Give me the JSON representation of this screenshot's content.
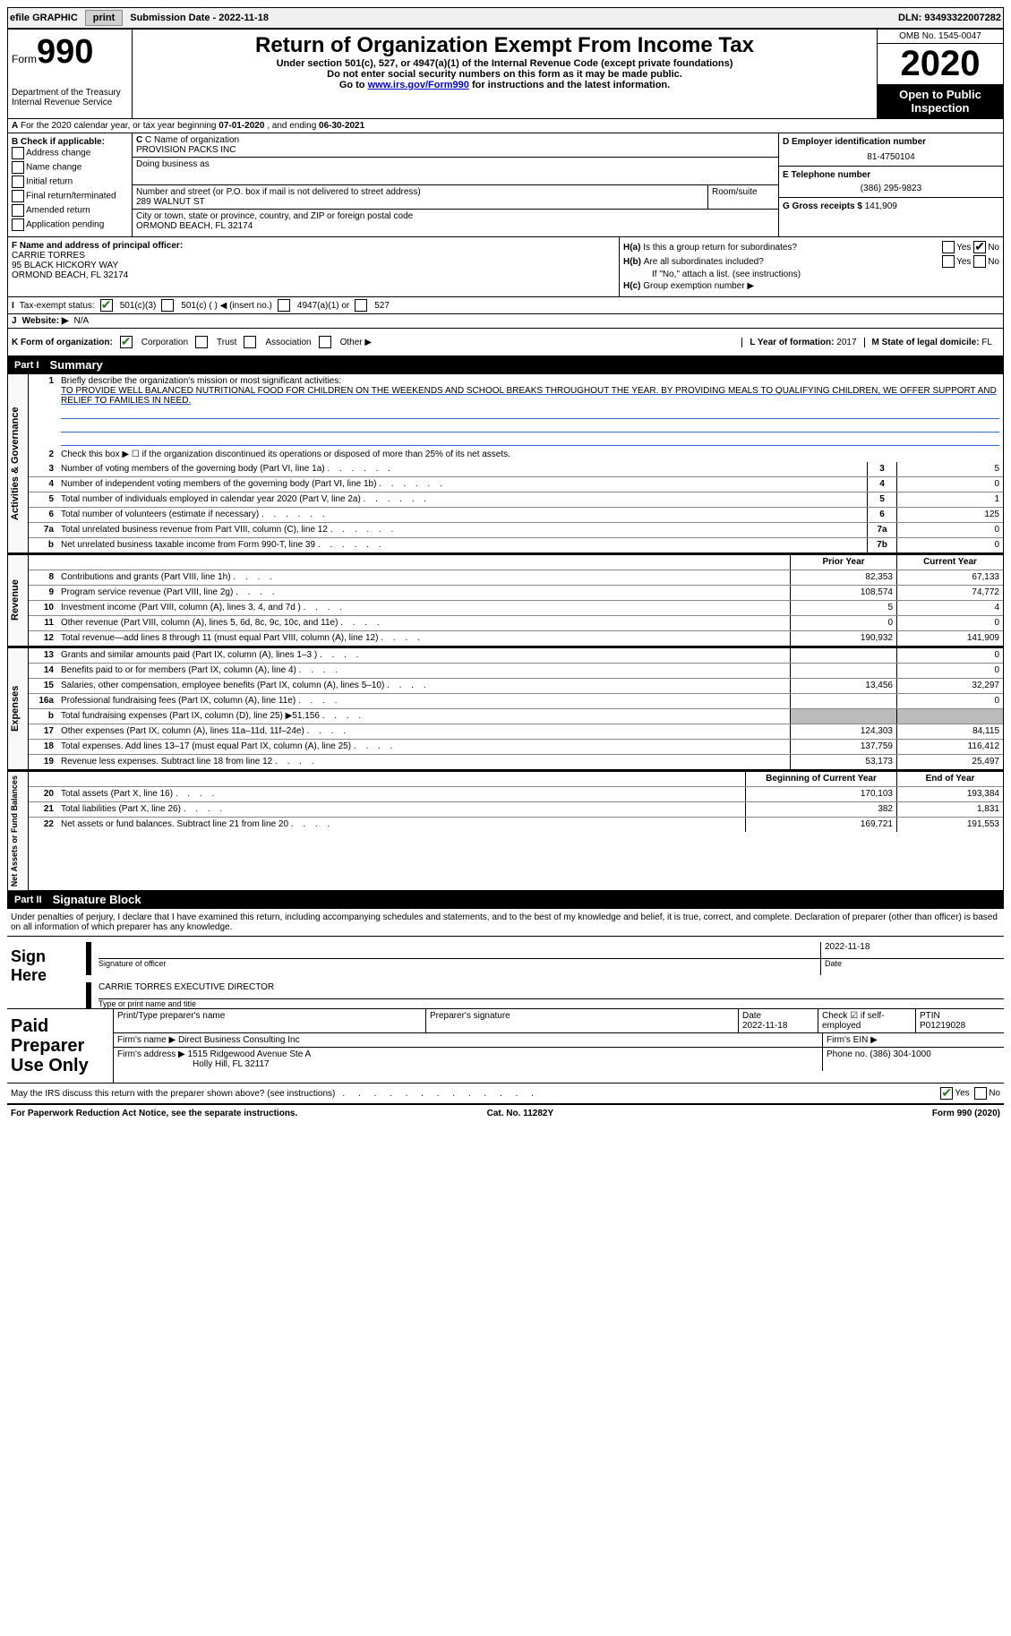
{
  "topbar": {
    "efile_label": "efile GRAPHIC",
    "print_btn": "print",
    "submission_label": "Submission Date - ",
    "submission_date": "2022-11-18",
    "dln_label": "DLN: ",
    "dln": "93493322007282"
  },
  "header": {
    "form_label": "Form",
    "form_num": "990",
    "dept": "Department of the Treasury",
    "irs": "Internal Revenue Service",
    "title": "Return of Organization Exempt From Income Tax",
    "sub1": "Under section 501(c), 527, or 4947(a)(1) of the Internal Revenue Code (except private foundations)",
    "sub2": "Do not enter social security numbers on this form as it may be made public.",
    "sub3_pre": "Go to ",
    "sub3_link": "www.irs.gov/Form990",
    "sub3_post": " for instructions and the latest information.",
    "omb": "OMB No. 1545-0047",
    "year": "2020",
    "open": "Open to Public Inspection"
  },
  "line_a": {
    "text": "For the 2020 calendar year, or tax year beginning ",
    "begin": "07-01-2020",
    "mid": " , and ending ",
    "end": "06-30-2021"
  },
  "col_b": {
    "title": "B Check if applicable:",
    "opts": [
      "Address change",
      "Name change",
      "Initial return",
      "Final return/terminated",
      "Amended return",
      "Application pending"
    ]
  },
  "col_c": {
    "name_label": "C Name of organization",
    "name": "PROVISION PACKS INC",
    "dba_label": "Doing business as",
    "dba": "",
    "street_label": "Number and street (or P.O. box if mail is not delivered to street address)",
    "room_label": "Room/suite",
    "street": "289 Walnut St",
    "city_label": "City or town, state or province, country, and ZIP or foreign postal code",
    "city": "ORMOND BEACH, FL  32174"
  },
  "col_d": {
    "ein_label": "D Employer identification number",
    "ein": "81-4750104",
    "phone_label": "E Telephone number",
    "phone": "(386) 295-9823",
    "gross_label": "G Gross receipts $ ",
    "gross": "141,909"
  },
  "col_f": {
    "label": "F  Name and address of principal officer:",
    "name": "CARRIE TORRES",
    "addr1": "95 BLACK HICKORY WAY",
    "addr2": "ORMOND BEACH, FL  32174"
  },
  "col_h": {
    "ha": "Is this a group return for subordinates?",
    "hb": "Are all subordinates included?",
    "hb_note": "If \"No,\" attach a list. (see instructions)",
    "hc": "Group exemption number ▶",
    "yes": "Yes",
    "no": "No"
  },
  "line_i": {
    "label": "Tax-exempt status:",
    "o1": "501(c)(3)",
    "o2": "501(c) (    ) ◀ (insert no.)",
    "o3": "4947(a)(1) or",
    "o4": "527"
  },
  "line_j": {
    "label": "Website: ▶",
    "val": "N/A"
  },
  "line_k": {
    "label": "K Form of organization:",
    "o1": "Corporation",
    "o2": "Trust",
    "o3": "Association",
    "o4": "Other ▶",
    "l_label": "L Year of formation: ",
    "l_val": "2017",
    "m_label": "M State of legal domicile: ",
    "m_val": "FL"
  },
  "parts": {
    "p1_num": "Part I",
    "p1_title": "Summary",
    "p2_num": "Part II",
    "p2_title": "Signature Block"
  },
  "vtabs": {
    "ag": "Activities & Governance",
    "rev": "Revenue",
    "exp": "Expenses",
    "na": "Net Assets or Fund Balances"
  },
  "summary": {
    "l1_label": "Briefly describe the organization's mission or most significant activities:",
    "l1_text": "TO PROVIDE WELL BALANCED NUTRITIONAL FOOD FOR CHILDREN ON THE WEEKENDS AND SCHOOL BREAKS THROUGHOUT THE YEAR. BY PROVIDING MEALS TO QUALIFYING CHILDREN, WE OFFER SUPPORT AND RELIEF TO FAMILIES IN NEED.",
    "l2": "Check this box ▶ ☐  if the organization discontinued its operations or disposed of more than 25% of its net assets.",
    "rows_ag": [
      {
        "n": "3",
        "d": "Number of voting members of the governing body (Part VI, line 1a)",
        "c": "3",
        "v": "5"
      },
      {
        "n": "4",
        "d": "Number of independent voting members of the governing body (Part VI, line 1b)",
        "c": "4",
        "v": "0"
      },
      {
        "n": "5",
        "d": "Total number of individuals employed in calendar year 2020 (Part V, line 2a)",
        "c": "5",
        "v": "1"
      },
      {
        "n": "6",
        "d": "Total number of volunteers (estimate if necessary)",
        "c": "6",
        "v": "125"
      },
      {
        "n": "7a",
        "d": "Total unrelated business revenue from Part VIII, column (C), line 12",
        "c": "7a",
        "v": "0"
      },
      {
        "n": "b",
        "d": "Net unrelated business taxable income from Form 990-T, line 39",
        "c": "7b",
        "v": "0"
      }
    ],
    "header_py": "Prior Year",
    "header_cy": "Current Year",
    "rows_rev": [
      {
        "n": "8",
        "d": "Contributions and grants (Part VIII, line 1h)",
        "py": "82,353",
        "cy": "67,133"
      },
      {
        "n": "9",
        "d": "Program service revenue (Part VIII, line 2g)",
        "py": "108,574",
        "cy": "74,772"
      },
      {
        "n": "10",
        "d": "Investment income (Part VIII, column (A), lines 3, 4, and 7d )",
        "py": "5",
        "cy": "4"
      },
      {
        "n": "11",
        "d": "Other revenue (Part VIII, column (A), lines 5, 6d, 8c, 9c, 10c, and 11e)",
        "py": "0",
        "cy": "0"
      },
      {
        "n": "12",
        "d": "Total revenue—add lines 8 through 11 (must equal Part VIII, column (A), line 12)",
        "py": "190,932",
        "cy": "141,909"
      }
    ],
    "rows_exp": [
      {
        "n": "13",
        "d": "Grants and similar amounts paid (Part IX, column (A), lines 1–3 )",
        "py": "",
        "cy": "0"
      },
      {
        "n": "14",
        "d": "Benefits paid to or for members (Part IX, column (A), line 4)",
        "py": "",
        "cy": "0"
      },
      {
        "n": "15",
        "d": "Salaries, other compensation, employee benefits (Part IX, column (A), lines 5–10)",
        "py": "13,456",
        "cy": "32,297"
      },
      {
        "n": "16a",
        "d": "Professional fundraising fees (Part IX, column (A), line 11e)",
        "py": "",
        "cy": "0"
      },
      {
        "n": "b",
        "d": "Total fundraising expenses (Part IX, column (D), line 25) ▶51,156",
        "py": "SHADE",
        "cy": "SHADE"
      },
      {
        "n": "17",
        "d": "Other expenses (Part IX, column (A), lines 11a–11d, 11f–24e)",
        "py": "124,303",
        "cy": "84,115"
      },
      {
        "n": "18",
        "d": "Total expenses. Add lines 13–17 (must equal Part IX, column (A), line 25)",
        "py": "137,759",
        "cy": "116,412"
      },
      {
        "n": "19",
        "d": "Revenue less expenses. Subtract line 18 from line 12",
        "py": "53,173",
        "cy": "25,497"
      }
    ],
    "header_bcy": "Beginning of Current Year",
    "header_eoy": "End of Year",
    "rows_na": [
      {
        "n": "20",
        "d": "Total assets (Part X, line 16)",
        "py": "170,103",
        "cy": "193,384"
      },
      {
        "n": "21",
        "d": "Total liabilities (Part X, line 26)",
        "py": "382",
        "cy": "1,831"
      },
      {
        "n": "22",
        "d": "Net assets or fund balances. Subtract line 21 from line 20",
        "py": "169,721",
        "cy": "191,553"
      }
    ]
  },
  "sig": {
    "decl": "Under penalties of perjury, I declare that I have examined this return, including accompanying schedules and statements, and to the best of my knowledge and belief, it is true, correct, and complete. Declaration of preparer (other than officer) is based on all information of which preparer has any knowledge.",
    "sign_here": "Sign Here",
    "sig_officer": "Signature of officer",
    "date_label": "Date",
    "date": "2022-11-18",
    "name_title": "CARRIE TORRES  EXECUTIVE DIRECTOR",
    "name_title_sub": "Type or print name and title",
    "paid_prep": "Paid Preparer Use Only",
    "h_print": "Print/Type preparer's name",
    "h_sig": "Preparer's signature",
    "h_date": "Date",
    "h_date_v": "2022-11-18",
    "h_check": "Check ☑ if self-employed",
    "h_ptin": "PTIN",
    "ptin": "P01219028",
    "firm_name_label": "Firm's name    ▶",
    "firm_name": "Direct Business Consulting Inc",
    "firm_ein_label": "Firm's EIN ▶",
    "firm_addr_label": "Firm's address ▶",
    "firm_addr1": "1515 Ridgewood Avenue Ste A",
    "firm_addr2": "Holly Hill, FL  32117",
    "firm_phone_label": "Phone no. ",
    "firm_phone": "(386) 304-1000",
    "may_discuss": "May the IRS discuss this return with the preparer shown above? (see instructions)"
  },
  "footer": {
    "left": "For Paperwork Reduction Act Notice, see the separate instructions.",
    "mid": "Cat. No. 11282Y",
    "right": "Form 990 (2020)"
  }
}
